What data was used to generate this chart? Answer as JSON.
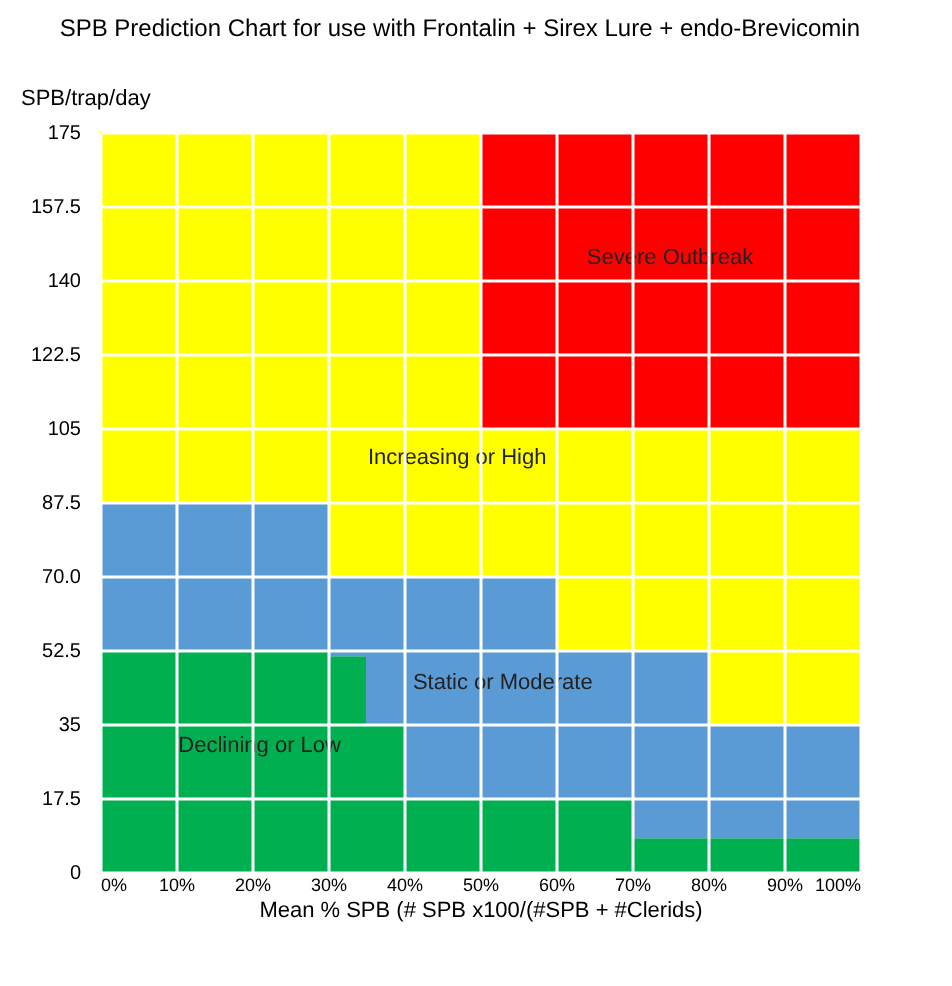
{
  "chart_data": {
    "type": "area",
    "title": "SPB Prediction Chart for use with Frontalin + Sirex Lure + endo-Brevicomin",
    "xlabel": "Mean % SPB (# SPB x100/(#SPB + #Clerids)",
    "ylabel": "SPB/trap/day",
    "x": [
      0,
      30,
      35,
      40,
      50,
      60,
      70,
      80,
      100
    ],
    "stacked": true,
    "line_style": "step",
    "series": [
      {
        "color": "#00b050",
        "values": [
          52.5,
          51,
          35,
          17.5,
          17.5,
          17.5,
          8,
          8,
          8
        ]
      },
      {
        "color": "#5b9bd5",
        "values": [
          35,
          19,
          35,
          52.5,
          52.5,
          35,
          44.5,
          27,
          27
        ]
      },
      {
        "color": "#ffff00",
        "values": [
          87.5,
          105,
          105,
          105,
          35,
          52.5,
          52.5,
          70,
          70
        ]
      },
      {
        "color": "#ff0000",
        "values": [
          0,
          0,
          0,
          0,
          70,
          70,
          70,
          70,
          70
        ]
      }
    ],
    "xlim": [
      0,
      100
    ],
    "xticks": [
      {
        "value": 0,
        "label": "0%"
      },
      {
        "value": 10,
        "label": "10%"
      },
      {
        "value": 20,
        "label": "20%"
      },
      {
        "value": 30,
        "label": "30%"
      },
      {
        "value": 40,
        "label": "40%"
      },
      {
        "value": 50,
        "label": "50%"
      },
      {
        "value": 60,
        "label": "60%"
      },
      {
        "value": 70,
        "label": "70%"
      },
      {
        "value": 80,
        "label": "80%"
      },
      {
        "value": 90,
        "label": "90%"
      },
      {
        "value": 100,
        "label": "100%"
      }
    ],
    "ylim": [
      0,
      175
    ],
    "yticks": [
      0,
      17.5,
      35,
      52.5,
      {
        "value": 70,
        "label": "70.0"
      },
      87.5,
      105,
      122.5,
      140,
      157.5,
      175
    ],
    "grid": true,
    "legend": false,
    "annotations": [
      "Severe Outbreak",
      "Increasing or High",
      "Static or Moderate",
      "Declining or Low"
    ]
  }
}
